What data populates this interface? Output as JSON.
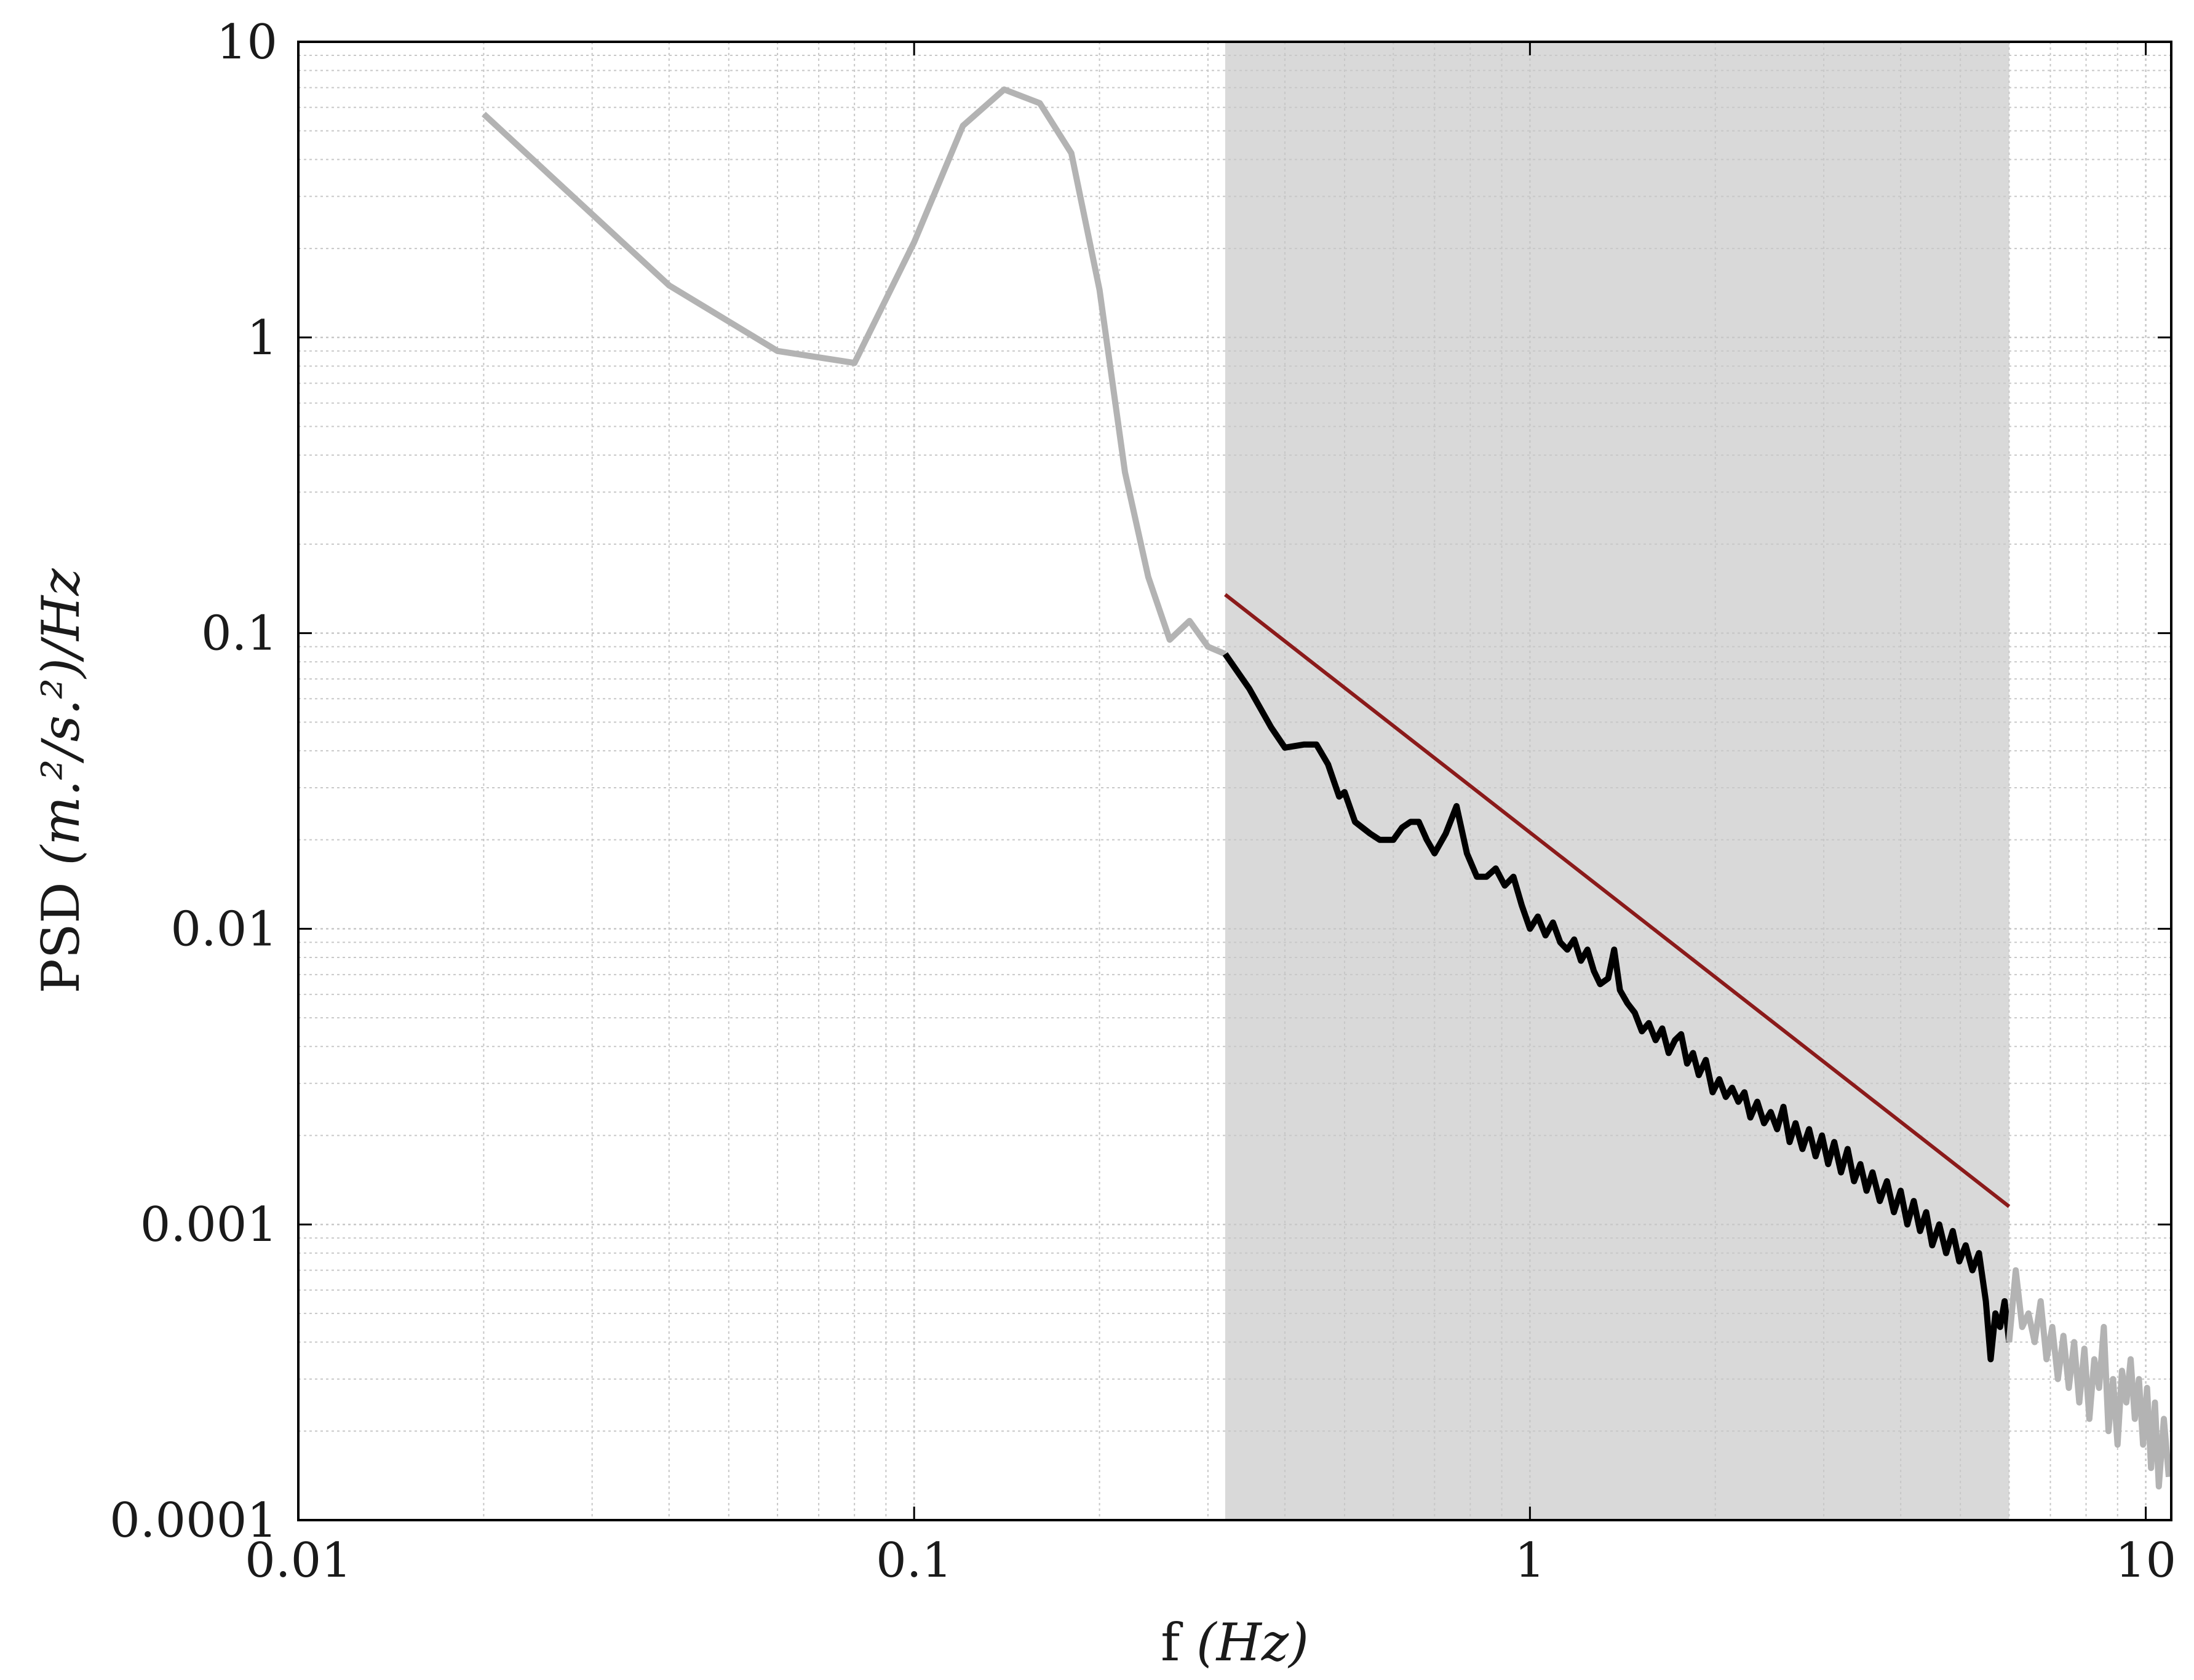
{
  "chart_data": {
    "type": "line",
    "xscale": "log",
    "yscale": "log",
    "xlim": [
      0.01,
      11
    ],
    "ylim": [
      0.0001,
      10
    ],
    "grid": true,
    "xlabel": {
      "plain": "f ",
      "italic": "(Hz)"
    },
    "ylabel": {
      "plain": "PSD ",
      "italic": "(m.²/s.²)/Hz"
    },
    "x_ticks": [
      {
        "value": 0.01,
        "label": "0.01"
      },
      {
        "value": 0.1,
        "label": "0.1"
      },
      {
        "value": 1,
        "label": "1"
      },
      {
        "value": 10,
        "label": "10"
      }
    ],
    "y_ticks": [
      {
        "value": 10,
        "label": "10"
      },
      {
        "value": 1,
        "label": "1"
      },
      {
        "value": 0.1,
        "label": "0.1"
      },
      {
        "value": 0.01,
        "label": "0.01"
      },
      {
        "value": 0.001,
        "label": "0.001"
      },
      {
        "value": 0.0001,
        "label": "0.0001"
      }
    ],
    "shaded_band": {
      "x": [
        0.32,
        6.0
      ],
      "color": "#d9d9d9"
    },
    "series": [
      {
        "color": "#b3b3b3",
        "points": [
          [
            0.02,
            5.7
          ],
          [
            0.04,
            1.5
          ],
          [
            0.06,
            0.9
          ],
          [
            0.08,
            0.82
          ],
          [
            0.1,
            2.1
          ],
          [
            0.12,
            5.2
          ],
          [
            0.14,
            6.9
          ],
          [
            0.16,
            6.2
          ],
          [
            0.18,
            4.2
          ],
          [
            0.2,
            1.45
          ],
          [
            0.22,
            0.35
          ],
          [
            0.24,
            0.155
          ],
          [
            0.26,
            0.095
          ],
          [
            0.28,
            0.11
          ],
          [
            0.3,
            0.09
          ],
          [
            0.32,
            0.085
          ]
        ]
      },
      {
        "color": "#000000",
        "points": [
          [
            0.32,
            0.085
          ],
          [
            0.35,
            0.065
          ],
          [
            0.38,
            0.048
          ],
          [
            0.4,
            0.041
          ],
          [
            0.43,
            0.042
          ],
          [
            0.45,
            0.042
          ],
          [
            0.47,
            0.036
          ],
          [
            0.49,
            0.028
          ],
          [
            0.5,
            0.029
          ],
          [
            0.52,
            0.023
          ],
          [
            0.55,
            0.021
          ],
          [
            0.57,
            0.02
          ],
          [
            0.6,
            0.02
          ],
          [
            0.62,
            0.022
          ],
          [
            0.64,
            0.023
          ],
          [
            0.66,
            0.023
          ],
          [
            0.68,
            0.02
          ],
          [
            0.7,
            0.018
          ],
          [
            0.73,
            0.021
          ],
          [
            0.76,
            0.026
          ],
          [
            0.79,
            0.018
          ],
          [
            0.82,
            0.015
          ],
          [
            0.85,
            0.015
          ],
          [
            0.88,
            0.016
          ],
          [
            0.91,
            0.014
          ],
          [
            0.94,
            0.015
          ],
          [
            0.97,
            0.012
          ],
          [
            1.0,
            0.01
          ],
          [
            1.03,
            0.011
          ],
          [
            1.06,
            0.0095
          ],
          [
            1.09,
            0.0105
          ],
          [
            1.12,
            0.009
          ],
          [
            1.15,
            0.0085
          ],
          [
            1.18,
            0.0092
          ],
          [
            1.21,
            0.0078
          ],
          [
            1.24,
            0.0085
          ],
          [
            1.27,
            0.0072
          ],
          [
            1.3,
            0.0065
          ],
          [
            1.34,
            0.0068
          ],
          [
            1.37,
            0.0085
          ],
          [
            1.4,
            0.0062
          ],
          [
            1.44,
            0.0056
          ],
          [
            1.48,
            0.0052
          ],
          [
            1.52,
            0.0045
          ],
          [
            1.56,
            0.0048
          ],
          [
            1.6,
            0.0042
          ],
          [
            1.64,
            0.0046
          ],
          [
            1.68,
            0.0038
          ],
          [
            1.72,
            0.0042
          ],
          [
            1.76,
            0.0044
          ],
          [
            1.8,
            0.0035
          ],
          [
            1.84,
            0.0038
          ],
          [
            1.88,
            0.0032
          ],
          [
            1.93,
            0.0036
          ],
          [
            1.98,
            0.0028
          ],
          [
            2.03,
            0.0031
          ],
          [
            2.08,
            0.0027
          ],
          [
            2.13,
            0.0029
          ],
          [
            2.18,
            0.0026
          ],
          [
            2.23,
            0.0028
          ],
          [
            2.28,
            0.0023
          ],
          [
            2.34,
            0.0026
          ],
          [
            2.4,
            0.0022
          ],
          [
            2.46,
            0.0024
          ],
          [
            2.52,
            0.0021
          ],
          [
            2.58,
            0.0025
          ],
          [
            2.64,
            0.0019
          ],
          [
            2.7,
            0.0022
          ],
          [
            2.77,
            0.0018
          ],
          [
            2.84,
            0.0021
          ],
          [
            2.91,
            0.0017
          ],
          [
            2.98,
            0.002
          ],
          [
            3.05,
            0.0016
          ],
          [
            3.12,
            0.0019
          ],
          [
            3.2,
            0.0015
          ],
          [
            3.28,
            0.0018
          ],
          [
            3.36,
            0.0014
          ],
          [
            3.44,
            0.0016
          ],
          [
            3.52,
            0.0013
          ],
          [
            3.6,
            0.0015
          ],
          [
            3.7,
            0.0012
          ],
          [
            3.8,
            0.0014
          ],
          [
            3.9,
            0.0011
          ],
          [
            4.0,
            0.0013
          ],
          [
            4.1,
            0.001
          ],
          [
            4.2,
            0.0012
          ],
          [
            4.3,
            0.00095
          ],
          [
            4.4,
            0.0011
          ],
          [
            4.5,
            0.00085
          ],
          [
            4.62,
            0.001
          ],
          [
            4.74,
            0.0008
          ],
          [
            4.86,
            0.00095
          ],
          [
            4.98,
            0.00075
          ],
          [
            5.1,
            0.00085
          ],
          [
            5.23,
            0.0007
          ],
          [
            5.36,
            0.0008
          ],
          [
            5.5,
            0.00055
          ],
          [
            5.6,
            0.00035
          ],
          [
            5.7,
            0.0005
          ],
          [
            5.8,
            0.00045
          ],
          [
            5.9,
            0.00055
          ],
          [
            6.0,
            0.0004
          ]
        ]
      },
      {
        "color": "#b3b3b3",
        "points": [
          [
            6.0,
            0.0004
          ],
          [
            6.15,
            0.0007
          ],
          [
            6.3,
            0.00045
          ],
          [
            6.45,
            0.0005
          ],
          [
            6.6,
            0.0004
          ],
          [
            6.75,
            0.00055
          ],
          [
            6.9,
            0.00035
          ],
          [
            7.05,
            0.00045
          ],
          [
            7.2,
            0.0003
          ],
          [
            7.35,
            0.00042
          ],
          [
            7.5,
            0.00028
          ],
          [
            7.65,
            0.0004
          ],
          [
            7.8,
            0.00025
          ],
          [
            7.95,
            0.00038
          ],
          [
            8.1,
            0.00022
          ],
          [
            8.25,
            0.00035
          ],
          [
            8.4,
            0.00028
          ],
          [
            8.55,
            0.00045
          ],
          [
            8.7,
            0.0002
          ],
          [
            8.85,
            0.0003
          ],
          [
            9.0,
            0.00018
          ],
          [
            9.15,
            0.00032
          ],
          [
            9.3,
            0.00025
          ],
          [
            9.45,
            0.00035
          ],
          [
            9.6,
            0.00022
          ],
          [
            9.75,
            0.0003
          ],
          [
            9.9,
            0.00018
          ],
          [
            10.05,
            0.00028
          ],
          [
            10.2,
            0.00015
          ],
          [
            10.35,
            0.00025
          ],
          [
            10.5,
            0.00013
          ],
          [
            10.7,
            0.00022
          ],
          [
            10.9,
            0.00014
          ]
        ]
      },
      {
        "color": "#8b1a1a",
        "points": [
          [
            0.32,
            0.135
          ],
          [
            6.0,
            0.00115
          ]
        ]
      }
    ]
  }
}
